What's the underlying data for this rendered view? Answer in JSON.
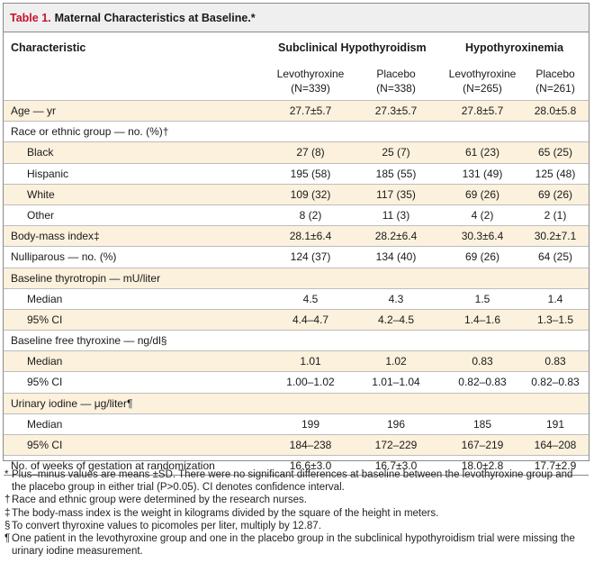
{
  "table": {
    "label": "Table 1.",
    "title": "Maternal Characteristics at Baseline.*",
    "header": {
      "characteristic": "Characteristic",
      "group1": "Subclinical Hypothyroidism",
      "group2": "Hypothyroxinemia",
      "cols": [
        "Levothyroxine\n(N=339)",
        "Placebo\n(N=338)",
        "Levothyroxine\n(N=265)",
        "Placebo\n(N=261)"
      ]
    },
    "rows": [
      {
        "label": "Age — yr",
        "indent": false,
        "shaded": true,
        "values": [
          "27.7±5.7",
          "27.3±5.7",
          "27.8±5.7",
          "28.0±5.8"
        ]
      },
      {
        "label": "Race or ethnic group — no. (%)†",
        "indent": false,
        "shaded": false,
        "values": [
          "",
          "",
          "",
          ""
        ]
      },
      {
        "label": "Black",
        "indent": true,
        "shaded": true,
        "values": [
          "27 (8)",
          "25 (7)",
          "61 (23)",
          "65 (25)"
        ]
      },
      {
        "label": "Hispanic",
        "indent": true,
        "shaded": false,
        "values": [
          "195 (58)",
          "185 (55)",
          "131 (49)",
          "125 (48)"
        ]
      },
      {
        "label": "White",
        "indent": true,
        "shaded": true,
        "values": [
          "109 (32)",
          "117 (35)",
          "69 (26)",
          "69 (26)"
        ]
      },
      {
        "label": "Other",
        "indent": true,
        "shaded": false,
        "values": [
          "8 (2)",
          "11 (3)",
          "4 (2)",
          "2 (1)"
        ]
      },
      {
        "label": "Body-mass index‡",
        "indent": false,
        "shaded": true,
        "values": [
          "28.1±6.4",
          "28.2±6.4",
          "30.3±6.4",
          "30.2±7.1"
        ]
      },
      {
        "label": "Nulliparous — no. (%)",
        "indent": false,
        "shaded": false,
        "values": [
          "124 (37)",
          "134 (40)",
          "69 (26)",
          "64 (25)"
        ]
      },
      {
        "label": "Baseline thyrotropin — mU/liter",
        "indent": false,
        "shaded": true,
        "values": [
          "",
          "",
          "",
          ""
        ]
      },
      {
        "label": "Median",
        "indent": true,
        "shaded": false,
        "values": [
          "4.5",
          "4.3",
          "1.5",
          "1.4"
        ]
      },
      {
        "label": "95% CI",
        "indent": true,
        "shaded": true,
        "values": [
          "4.4–4.7",
          "4.2–4.5",
          "1.4–1.6",
          "1.3–1.5"
        ]
      },
      {
        "label": "Baseline free thyroxine — ng/dl§",
        "indent": false,
        "shaded": false,
        "values": [
          "",
          "",
          "",
          ""
        ]
      },
      {
        "label": "Median",
        "indent": true,
        "shaded": true,
        "values": [
          "1.01",
          "1.02",
          "0.83",
          "0.83"
        ]
      },
      {
        "label": "95% CI",
        "indent": true,
        "shaded": false,
        "values": [
          "1.00–1.02",
          "1.01–1.04",
          "0.82–0.83",
          "0.82–0.83"
        ]
      },
      {
        "label": "Urinary iodine — μg/liter¶",
        "indent": false,
        "shaded": true,
        "values": [
          "",
          "",
          "",
          ""
        ]
      },
      {
        "label": "Median",
        "indent": true,
        "shaded": false,
        "values": [
          "199",
          "196",
          "185",
          "191"
        ]
      },
      {
        "label": "95% CI",
        "indent": true,
        "shaded": true,
        "values": [
          "184–238",
          "172–229",
          "167–219",
          "164–208"
        ]
      },
      {
        "label": "No. of weeks of gestation at randomization",
        "indent": false,
        "shaded": false,
        "values": [
          "16.6±3.0",
          "16.7±3.0",
          "18.0±2.8",
          "17.7±2.9"
        ]
      }
    ]
  },
  "footnotes": [
    {
      "symbol": "*",
      "text": "Plus–minus values are means ±SD. There were no significant differences at baseline between the levothyroxine group and the placebo group in either trial (P>0.05). CI denotes confidence interval."
    },
    {
      "symbol": "†",
      "text": "Race and ethnic group were determined by the research nurses."
    },
    {
      "symbol": "‡",
      "text": "The body-mass index is the weight in kilograms divided by the square of the height in meters."
    },
    {
      "symbol": "§",
      "text": "To convert thyroxine values to picomoles per liter, multiply by 12.87."
    },
    {
      "symbol": "¶",
      "text": "One patient in the levothyroxine group and one in the placebo group in the subclinical hypothyroidism trial were missing the urinary iodine measurement."
    }
  ],
  "colors": {
    "accent": "#c8102e",
    "shade": "#fbf1dc",
    "title_bg": "#efefef"
  }
}
